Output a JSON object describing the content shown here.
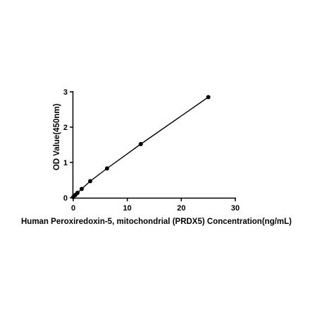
{
  "chart_data": {
    "type": "scatter",
    "title": "",
    "xlabel": "Human Peroxiredoxin-5, mitochondrial (PRDX5) Concentration(ng/mL)",
    "ylabel": "OD Value(450nm)",
    "xlim": [
      0,
      30
    ],
    "ylim": [
      0,
      3
    ],
    "x_ticks": [
      "0",
      "10",
      "20",
      "30"
    ],
    "y_ticks": [
      "0",
      "1",
      "2",
      "3"
    ],
    "grid": false,
    "legend": "none",
    "series": [
      {
        "x": [
          0,
          0.39,
          0.78,
          1.56,
          3.13,
          6.25,
          12.5,
          25
        ],
        "y": [
          0.02,
          0.08,
          0.14,
          0.25,
          0.47,
          0.83,
          1.52,
          2.85
        ],
        "marker": "circle",
        "fit": "line"
      }
    ],
    "colors": {
      "points": "#000000",
      "line": "#000000",
      "axes": "#000000"
    }
  }
}
